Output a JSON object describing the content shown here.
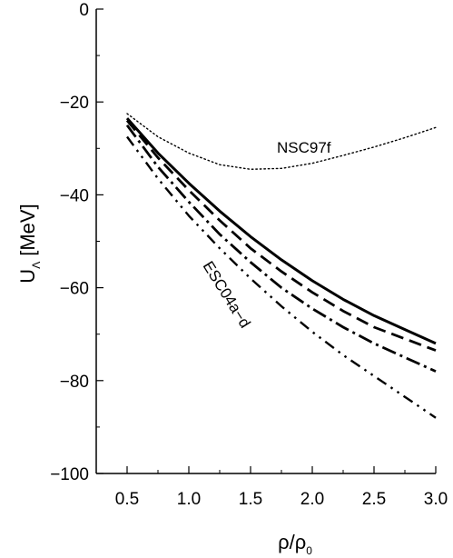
{
  "chart_data": {
    "type": "line",
    "xlabel": "ρ/ρ",
    "xlabel_sub": "0",
    "ylabel": "U",
    "ylabel_sub": "Λ",
    "ylabel_unit": "[MeV]",
    "xlim": [
      0.25,
      3.0
    ],
    "ylim": [
      -100,
      0
    ],
    "x_ticks": [
      0.5,
      1.0,
      1.5,
      2.0,
      2.5,
      3.0
    ],
    "x_tick_labels": [
      "0.5",
      "1.0",
      "1.5",
      "2.0",
      "2.5",
      "3.0"
    ],
    "y_ticks": [
      0,
      -20,
      -40,
      -60,
      -80,
      -100
    ],
    "y_tick_labels": [
      "0",
      "−20",
      "−40",
      "−60",
      "−80",
      "−100"
    ],
    "grid": false,
    "annotations": [
      {
        "text": "NSC97f",
        "series": "nsc97f"
      },
      {
        "text": "ESC04a−d",
        "series": "esc04"
      }
    ],
    "series": [
      {
        "id": "nsc97f",
        "style": "dotted-fine",
        "x": [
          0.5,
          0.75,
          1.0,
          1.25,
          1.5,
          1.75,
          2.0,
          2.25,
          2.5,
          2.75,
          3.0
        ],
        "values": [
          -22.5,
          -27.5,
          -31.0,
          -33.5,
          -34.5,
          -34.3,
          -33.2,
          -31.5,
          -29.7,
          -27.7,
          -25.5
        ]
      },
      {
        "id": "esc04a",
        "style": "solid",
        "x": [
          0.5,
          0.75,
          1.0,
          1.25,
          1.5,
          1.75,
          2.0,
          2.25,
          2.5,
          2.75,
          3.0
        ],
        "values": [
          -23.5,
          -31.0,
          -37.5,
          -43.5,
          -49.0,
          -54.0,
          -58.5,
          -62.5,
          -66.0,
          -69.0,
          -72.0
        ]
      },
      {
        "id": "esc04b",
        "style": "dashed",
        "x": [
          0.5,
          0.75,
          1.0,
          1.25,
          1.5,
          1.75,
          2.0,
          2.25,
          2.5,
          2.75,
          3.0
        ],
        "values": [
          -24.0,
          -32.0,
          -39.0,
          -45.5,
          -51.5,
          -56.5,
          -61.0,
          -65.0,
          -68.5,
          -71.0,
          -73.5
        ]
      },
      {
        "id": "esc04c",
        "style": "dash-dot",
        "x": [
          0.5,
          0.75,
          1.0,
          1.25,
          1.5,
          1.75,
          2.0,
          2.25,
          2.5,
          2.75,
          3.0
        ],
        "values": [
          -25.0,
          -34.0,
          -41.5,
          -48.5,
          -54.5,
          -60.0,
          -64.5,
          -68.5,
          -72.0,
          -75.0,
          -78.0
        ]
      },
      {
        "id": "esc04d",
        "style": "dash-dot-dot",
        "x": [
          0.5,
          0.75,
          1.0,
          1.25,
          1.5,
          1.75,
          2.0,
          2.25,
          2.5,
          2.75,
          3.0
        ],
        "values": [
          -27.5,
          -36.5,
          -44.5,
          -51.5,
          -58.0,
          -64.0,
          -69.5,
          -74.5,
          -79.0,
          -83.5,
          -88.0
        ]
      }
    ]
  }
}
